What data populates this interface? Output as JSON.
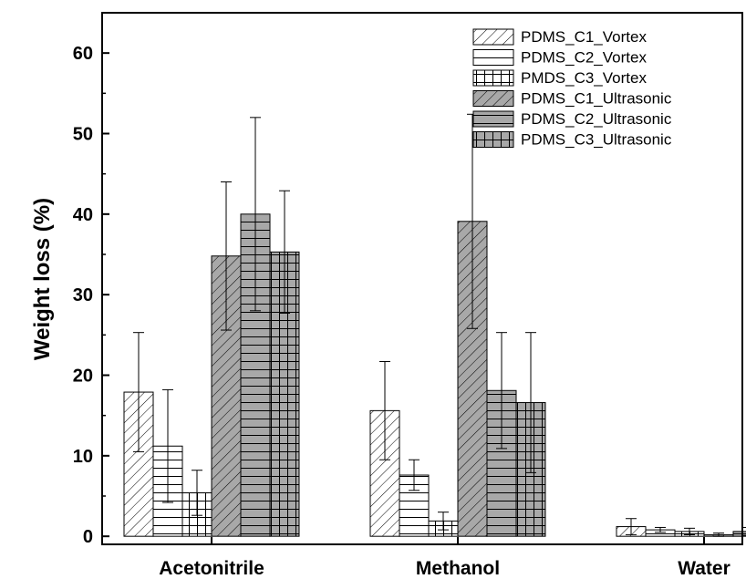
{
  "chart_data": {
    "type": "bar",
    "title": "",
    "xlabel": "",
    "ylabel": "Weight loss (%)",
    "ylim": [
      -1,
      65
    ],
    "yticks": [
      0,
      10,
      20,
      30,
      40,
      50,
      60
    ],
    "grid": false,
    "legend_position": "top-right",
    "categories": [
      "Acetonitrile",
      "Methanol",
      "Water"
    ],
    "series": [
      {
        "name": "PDMS_C1_Vortex",
        "pattern": "diag-light",
        "values": [
          17.9,
          15.6,
          1.2
        ],
        "errors": [
          7.4,
          6.1,
          1.0
        ]
      },
      {
        "name": "PDMS_C2_Vortex",
        "pattern": "hlines",
        "values": [
          11.2,
          7.6,
          0.8
        ],
        "errors": [
          7.0,
          1.9,
          0.3
        ]
      },
      {
        "name": "PMDS_C3_Vortex",
        "pattern": "grid-light",
        "values": [
          5.4,
          1.9,
          0.6
        ],
        "errors": [
          2.8,
          1.1,
          0.4
        ]
      },
      {
        "name": "PDMS_C1_Ultrasonic",
        "pattern": "diag-dark",
        "values": [
          34.8,
          39.1,
          0.2
        ],
        "errors": [
          9.2,
          13.3,
          0.2
        ]
      },
      {
        "name": "PDMS_C2_Ultrasonic",
        "pattern": "hlines-dark",
        "values": [
          40.0,
          18.1,
          0.6
        ],
        "errors": [
          12.0,
          7.2,
          0.5
        ]
      },
      {
        "name": "PDMS_C3_Ultrasonic",
        "pattern": "grid-dark",
        "values": [
          35.3,
          16.6,
          0.1
        ],
        "errors": [
          7.6,
          8.7,
          0.05
        ]
      }
    ]
  }
}
